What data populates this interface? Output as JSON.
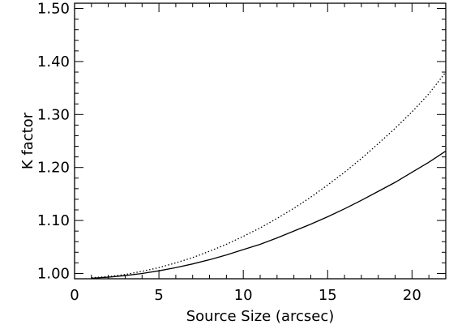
{
  "chart_data": {
    "type": "line",
    "title": "",
    "xlabel": "Source Size (arcsec)",
    "ylabel": "K factor",
    "xlim": [
      0,
      22
    ],
    "ylim": [
      0.99,
      1.51
    ],
    "grid": false,
    "legend": "none",
    "x_ticks": [
      0,
      5,
      10,
      15,
      20
    ],
    "x_tick_labels": [
      "0",
      "5",
      "10",
      "15",
      "20"
    ],
    "y_ticks": [
      1.0,
      1.1,
      1.2,
      1.3,
      1.4,
      1.5
    ],
    "y_tick_labels": [
      "1.00",
      "1.10",
      "1.20",
      "1.30",
      "1.40",
      "1.50"
    ],
    "series": [
      {
        "style": "solid",
        "color": "#000000",
        "x": [
          1,
          2,
          3,
          4,
          5,
          6,
          7,
          8,
          9,
          10,
          11,
          12,
          13,
          14,
          15,
          16,
          17,
          18,
          19,
          20,
          21,
          22
        ],
        "y": [
          0.991,
          0.993,
          0.996,
          1.0,
          1.005,
          1.011,
          1.018,
          1.026,
          1.035,
          1.045,
          1.055,
          1.067,
          1.08,
          1.093,
          1.107,
          1.122,
          1.138,
          1.155,
          1.172,
          1.191,
          1.21,
          1.231
        ]
      },
      {
        "style": "dotted",
        "color": "#000000",
        "x": [
          1,
          2,
          3,
          4,
          5,
          6,
          7,
          8,
          9,
          10,
          11,
          12,
          13,
          14,
          15,
          16,
          17,
          18,
          19,
          20,
          21,
          22
        ],
        "y": [
          0.992,
          0.994,
          0.998,
          1.004,
          1.011,
          1.02,
          1.03,
          1.042,
          1.055,
          1.07,
          1.086,
          1.104,
          1.123,
          1.144,
          1.167,
          1.191,
          1.217,
          1.245,
          1.274,
          1.305,
          1.339,
          1.38
        ]
      }
    ]
  }
}
